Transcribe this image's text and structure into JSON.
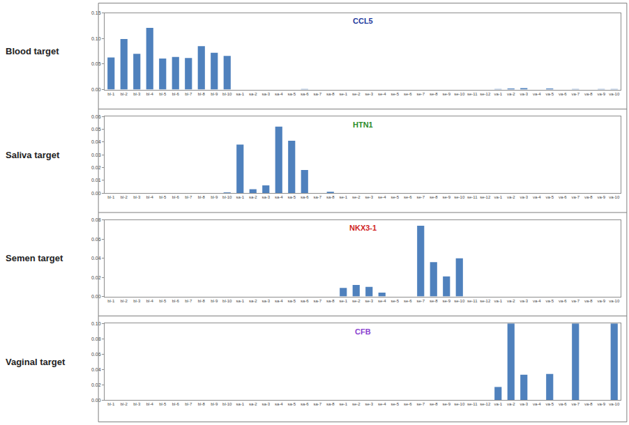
{
  "chart_data": [
    {
      "type": "bar",
      "title": "CCL5",
      "ylabel": "Blood target",
      "color": "#4f81bd",
      "grid": false,
      "categories": [
        "bl-1",
        "bl-2",
        "bl-3",
        "bl-4",
        "bl-5",
        "bl-6",
        "bl-7",
        "bl-8",
        "bl-9",
        "bl-10",
        "sa-1",
        "sa-2",
        "sa-3",
        "sa-4",
        "sa-5",
        "sa-6",
        "sa-7",
        "sa-8",
        "se-1",
        "se-2",
        "se-3",
        "se-4",
        "se-5",
        "se-6",
        "se-7",
        "se-8",
        "se-9",
        "se-10",
        "se-11",
        "se-12",
        "va-1",
        "va-2",
        "va-3",
        "va-4",
        "va-5",
        "va-6",
        "va-7",
        "va-8",
        "va-9",
        "va-10"
      ],
      "values": [
        0.063,
        0.099,
        0.07,
        0.121,
        0.061,
        0.064,
        0.062,
        0.085,
        0.072,
        0.066,
        0,
        0,
        0,
        0,
        0,
        0.001,
        0,
        0,
        0,
        0,
        0,
        0,
        0,
        0,
        0,
        0,
        0,
        0,
        0,
        0,
        0.001,
        0.002,
        0.003,
        0,
        0.002,
        0,
        0.001,
        0,
        0.001,
        0.001
      ],
      "ylim": [
        0,
        0.15
      ],
      "yticks": [
        {
          "value": 0,
          "label": "0.00"
        },
        {
          "value": 0.05,
          "label": "0.05"
        },
        {
          "value": 0.1,
          "label": "0.10"
        },
        {
          "value": 0.15,
          "label": "0.15"
        }
      ]
    },
    {
      "type": "bar",
      "title": "HTN1",
      "ylabel": "Saliva target",
      "color": "#4f81bd",
      "grid": false,
      "categories": [
        "bl-1",
        "bl-2",
        "bl-3",
        "bl-4",
        "bl-5",
        "bl-6",
        "bl-7",
        "bl-8",
        "bl-9",
        "bl-10",
        "sa-1",
        "sa-2",
        "sa-3",
        "sa-4",
        "sa-5",
        "sa-6",
        "sa-7",
        "sa-8",
        "se-1",
        "se-2",
        "se-3",
        "se-4",
        "se-5",
        "se-6",
        "se-7",
        "se-8",
        "se-9",
        "se-10",
        "se-11",
        "se-12",
        "va-1",
        "va-2",
        "va-3",
        "va-4",
        "va-5",
        "va-6",
        "va-7",
        "va-8",
        "va-9",
        "va-10"
      ],
      "values": [
        0,
        0,
        0,
        0,
        0,
        0,
        0,
        0,
        0,
        0.0005,
        0.038,
        0.003,
        0.006,
        0.052,
        0.041,
        0.018,
        0,
        0.001,
        0,
        0,
        0,
        0,
        0,
        0,
        0,
        0,
        0,
        0,
        0,
        0,
        0,
        0,
        0,
        0,
        0,
        0,
        0,
        0,
        0,
        0
      ],
      "ylim": [
        0,
        0.06
      ],
      "yticks": [
        {
          "value": 0,
          "label": "0.00"
        },
        {
          "value": 0.01,
          "label": "0.01"
        },
        {
          "value": 0.02,
          "label": "0.02"
        },
        {
          "value": 0.03,
          "label": "0.03"
        },
        {
          "value": 0.04,
          "label": "0.04"
        },
        {
          "value": 0.05,
          "label": "0.05"
        },
        {
          "value": 0.06,
          "label": "0.06"
        }
      ]
    },
    {
      "type": "bar",
      "title": "NKX3-1",
      "ylabel": "Semen target",
      "color": "#4f81bd",
      "grid": false,
      "categories": [
        "bl-1",
        "bl-2",
        "bl-3",
        "bl-4",
        "bl-5",
        "bl-6",
        "bl-7",
        "bl-8",
        "bl-9",
        "bl-10",
        "sa-1",
        "sa-2",
        "sa-3",
        "sa-4",
        "sa-5",
        "sa-6",
        "sa-7",
        "sa-8",
        "se-1",
        "se-2",
        "se-3",
        "se-4",
        "se-5",
        "se-6",
        "se-7",
        "se-8",
        "se-9",
        "se-10",
        "se-11",
        "se-12",
        "va-1",
        "va-2",
        "va-3",
        "va-4",
        "va-5",
        "va-6",
        "va-7",
        "va-8",
        "va-9",
        "va-10"
      ],
      "values": [
        0,
        0,
        0,
        0,
        0,
        0,
        0,
        0,
        0,
        0,
        0,
        0,
        0,
        0,
        0,
        0,
        0,
        0,
        0.009,
        0.012,
        0.01,
        0.004,
        0,
        0,
        0.074,
        0.036,
        0.021,
        0.04,
        0,
        0,
        0,
        0,
        0,
        0,
        0,
        0,
        0,
        0,
        0,
        0
      ],
      "ylim": [
        0,
        0.08
      ],
      "yticks": [
        {
          "value": 0,
          "label": "0.00"
        },
        {
          "value": 0.02,
          "label": "0.02"
        },
        {
          "value": 0.04,
          "label": "0.04"
        },
        {
          "value": 0.06,
          "label": "0.06"
        },
        {
          "value": 0.08,
          "label": "0.08"
        }
      ]
    },
    {
      "type": "bar",
      "title": "CFB",
      "ylabel": "Vaginal target",
      "color": "#4f81bd",
      "grid": false,
      "categories": [
        "bl-1",
        "bl-2",
        "bl-3",
        "bl-4",
        "bl-5",
        "bl-6",
        "bl-7",
        "bl-8",
        "bl-9",
        "bl-10",
        "sa-1",
        "sa-2",
        "sa-3",
        "sa-4",
        "sa-5",
        "sa-6",
        "sa-7",
        "sa-8",
        "se-1",
        "se-2",
        "se-3",
        "se-4",
        "se-5",
        "se-6",
        "se-7",
        "se-8",
        "se-9",
        "se-10",
        "se-11",
        "se-12",
        "va-1",
        "va-2",
        "va-3",
        "va-4",
        "va-5",
        "va-6",
        "va-7",
        "va-8",
        "va-9",
        "va-10"
      ],
      "values": [
        0,
        0,
        0,
        0,
        0,
        0,
        0,
        0,
        0,
        0,
        0,
        0,
        0,
        0,
        0,
        0,
        0,
        0,
        0,
        0,
        0,
        0,
        0,
        0,
        0,
        0,
        0,
        0,
        0,
        0,
        0.017,
        0.1,
        0.033,
        0,
        0.034,
        0,
        0.1,
        0,
        0,
        0.1
      ],
      "ylim": [
        0,
        0.1
      ],
      "yticks": [
        {
          "value": 0,
          "label": "0.00"
        },
        {
          "value": 0.02,
          "label": "0.02"
        },
        {
          "value": 0.04,
          "label": "0.04"
        },
        {
          "value": 0.06,
          "label": "0.06"
        },
        {
          "value": 0.08,
          "label": "0.08"
        },
        {
          "value": 0.1,
          "label": "0.10"
        }
      ]
    }
  ]
}
